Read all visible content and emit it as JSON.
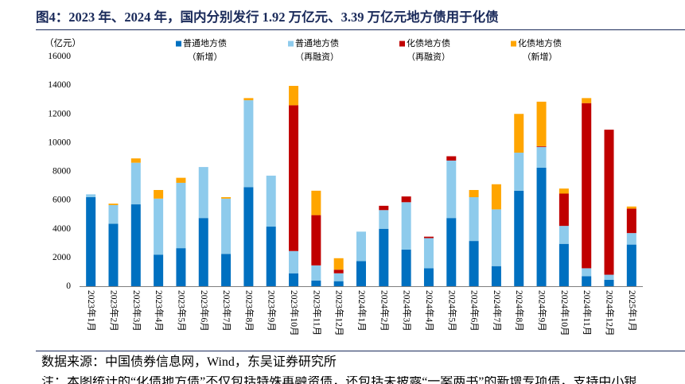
{
  "chart_data": {
    "type": "bar",
    "stacked": true,
    "title": "图4：2023 年、2024 年，国内分别发行 1.92 万亿元、3.39 万亿元地方债用于化债",
    "ylabel": "（亿元）",
    "xlabel": "",
    "ylim": [
      0,
      16000
    ],
    "yticks": [
      0,
      2000,
      4000,
      6000,
      8000,
      10000,
      12000,
      14000,
      16000
    ],
    "grid": false,
    "legend": "top",
    "categories": [
      "2023年1月",
      "2023年2月",
      "2023年3月",
      "2023年4月",
      "2023年5月",
      "2023年6月",
      "2023年7月",
      "2023年8月",
      "2023年9月",
      "2023年10月",
      "2023年11月",
      "2023年12月",
      "2024年1月",
      "2024年2月",
      "2024年3月",
      "2024年4月",
      "2024年5月",
      "2024年6月",
      "2024年7月",
      "2024年8月",
      "2024年9月",
      "2024年10月",
      "2024年11月",
      "2024年12月",
      "2025年1月"
    ],
    "series": [
      {
        "name": "普通地方债",
        "qualifier": "（新增）",
        "color": "#0070C0",
        "values": [
          6200,
          4350,
          5700,
          2200,
          2650,
          4750,
          2250,
          6900,
          4150,
          900,
          400,
          350,
          1750,
          4000,
          2550,
          1250,
          4750,
          3150,
          1400,
          6650,
          8250,
          2950,
          700,
          450,
          2900
        ]
      },
      {
        "name": "普通地方债",
        "qualifier": "（再融资）",
        "color": "#8ECBEC",
        "values": [
          200,
          1300,
          2900,
          3900,
          4550,
          3550,
          3850,
          6050,
          3550,
          1550,
          1050,
          550,
          2050,
          1300,
          3300,
          2100,
          4000,
          3050,
          3950,
          2650,
          1450,
          1250,
          550,
          350,
          800
        ]
      },
      {
        "name": "化债地方债",
        "qualifier": "（再融资）",
        "color": "#C00000",
        "values": [
          0,
          0,
          0,
          0,
          0,
          0,
          0,
          0,
          0,
          10150,
          3500,
          250,
          0,
          300,
          400,
          100,
          300,
          0,
          0,
          0,
          50,
          2250,
          11500,
          10100,
          1700
        ]
      },
      {
        "name": "化债地方债",
        "qualifier": "（新增）",
        "color": "#FFA500",
        "values": [
          0,
          100,
          300,
          600,
          350,
          0,
          100,
          150,
          0,
          1350,
          1700,
          800,
          0,
          0,
          0,
          0,
          0,
          500,
          1750,
          2700,
          3100,
          350,
          350,
          0,
          150
        ]
      }
    ]
  },
  "footer": {
    "source": "数据来源：中国债券信息网，Wind，东吴证券研究所",
    "note": "注：本图统计的“化债地方债”不仅包括特殊再融资债，还包括未披露“一案两书”的新增专项债，支持中小银"
  },
  "theme": {
    "title_color": "#1A2A5A",
    "rule_color": "#1A2A5A",
    "axis_color": "#7F7F7F"
  }
}
